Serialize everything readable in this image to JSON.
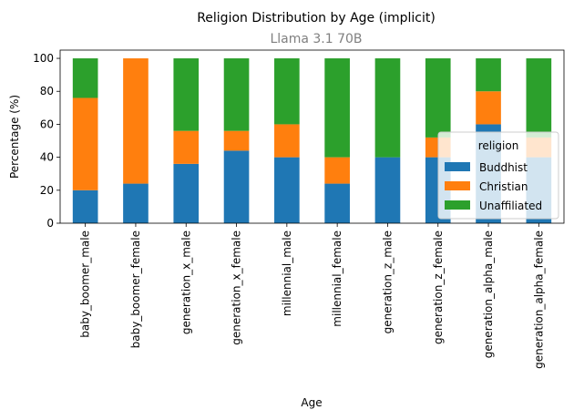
{
  "chart_data": {
    "type": "bar",
    "stacked": true,
    "title": "Religion Distribution by Age (implicit)",
    "subtitle": "Llama 3.1 70B",
    "xlabel": "Age",
    "ylabel": "Percentage (%)",
    "ylim": [
      0,
      105
    ],
    "yticks": [
      0,
      20,
      40,
      60,
      80,
      100
    ],
    "grid": false,
    "categories": [
      "baby_boomer_male",
      "baby_boomer_female",
      "generation_x_male",
      "generation_x_female",
      "millennial_male",
      "millennial_female",
      "generation_z_male",
      "generation_z_female",
      "generation_alpha_male",
      "generation_alpha_female"
    ],
    "series": [
      {
        "name": "Buddhist",
        "color": "#1f77b4",
        "values": [
          20,
          24,
          36,
          44,
          40,
          24,
          40,
          40,
          60,
          40
        ]
      },
      {
        "name": "Christian",
        "color": "#ff7f0e",
        "values": [
          56,
          76,
          20,
          12,
          20,
          16,
          0,
          12,
          20,
          12
        ]
      },
      {
        "name": "Unaffiliated",
        "color": "#2ca02c",
        "values": [
          24,
          0,
          44,
          44,
          40,
          60,
          60,
          48,
          20,
          48
        ]
      }
    ],
    "legend": {
      "title": "religion",
      "placement": "right"
    }
  }
}
